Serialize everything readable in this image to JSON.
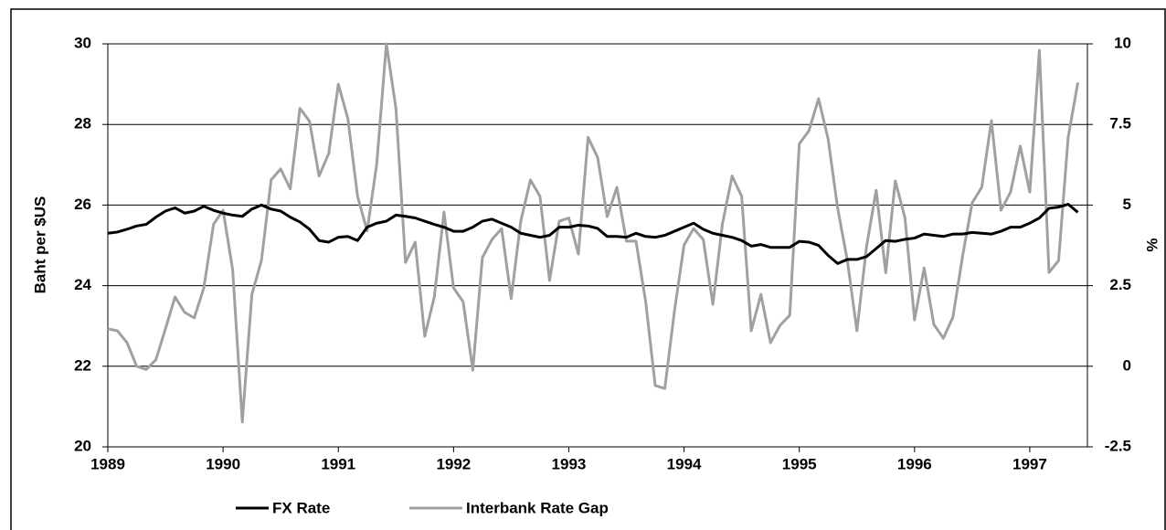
{
  "chart_data": {
    "type": "line",
    "y_label": "Baht per $US",
    "y2_label": "%",
    "x": [
      1989,
      1989.083,
      1989.167,
      1989.25,
      1989.333,
      1989.417,
      1989.5,
      1989.583,
      1989.667,
      1989.75,
      1989.833,
      1989.917,
      1990,
      1990.083,
      1990.167,
      1990.25,
      1990.333,
      1990.417,
      1990.5,
      1990.583,
      1990.667,
      1990.75,
      1990.833,
      1990.917,
      1991,
      1991.083,
      1991.167,
      1991.25,
      1991.333,
      1991.417,
      1991.5,
      1991.583,
      1991.667,
      1991.75,
      1991.833,
      1991.917,
      1992,
      1992.083,
      1992.167,
      1992.25,
      1992.333,
      1992.417,
      1992.5,
      1992.583,
      1992.667,
      1992.75,
      1992.833,
      1992.917,
      1993,
      1993.083,
      1993.167,
      1993.25,
      1993.333,
      1993.417,
      1993.5,
      1993.583,
      1993.667,
      1993.75,
      1993.833,
      1993.917,
      1994,
      1994.083,
      1994.167,
      1994.25,
      1994.333,
      1994.417,
      1994.5,
      1994.583,
      1994.667,
      1994.75,
      1994.833,
      1994.917,
      1995,
      1995.083,
      1995.167,
      1995.25,
      1995.333,
      1995.417,
      1995.5,
      1995.583,
      1995.667,
      1995.75,
      1995.833,
      1995.917,
      1996,
      1996.083,
      1996.167,
      1996.25,
      1996.333,
      1996.417,
      1996.5,
      1996.583,
      1996.667,
      1996.75,
      1996.833,
      1996.917,
      1997,
      1997.083,
      1997.167,
      1997.25,
      1997.333,
      1997.417
    ],
    "series": [
      {
        "name": "FX Rate",
        "color": "#000000",
        "axis": "y",
        "values": [
          25.3,
          25.33,
          25.4,
          25.48,
          25.52,
          25.7,
          25.85,
          25.93,
          25.8,
          25.85,
          25.97,
          25.87,
          25.8,
          25.75,
          25.72,
          25.9,
          26.0,
          25.9,
          25.85,
          25.7,
          25.58,
          25.4,
          25.12,
          25.08,
          25.2,
          25.22,
          25.12,
          25.45,
          25.55,
          25.6,
          25.75,
          25.72,
          25.68,
          25.6,
          25.52,
          25.45,
          25.35,
          25.35,
          25.45,
          25.6,
          25.65,
          25.55,
          25.45,
          25.3,
          25.25,
          25.2,
          25.25,
          25.45,
          25.45,
          25.5,
          25.48,
          25.42,
          25.22,
          25.22,
          25.2,
          25.3,
          25.22,
          25.2,
          25.25,
          25.35,
          25.45,
          25.55,
          25.4,
          25.3,
          25.25,
          25.2,
          25.12,
          24.98,
          25.02,
          24.95,
          24.95,
          24.95,
          25.1,
          25.08,
          25.0,
          24.75,
          24.55,
          24.65,
          24.65,
          24.72,
          24.92,
          25.12,
          25.1,
          25.15,
          25.18,
          25.28,
          25.25,
          25.22,
          25.28,
          25.28,
          25.32,
          25.3,
          25.28,
          25.35,
          25.45,
          25.45,
          25.55,
          25.68,
          25.92,
          25.95,
          26.02,
          25.82
        ]
      },
      {
        "name": "Interbank Rate Gap",
        "color": "#a0a0a0",
        "axis": "y2",
        "values": [
          1.16,
          1.1,
          0.73,
          0.0,
          -0.1,
          0.2,
          1.16,
          2.15,
          1.67,
          1.5,
          2.43,
          4.4,
          4.84,
          3.0,
          -1.73,
          2.23,
          3.28,
          5.78,
          6.12,
          5.5,
          8.0,
          7.6,
          5.9,
          6.6,
          8.75,
          7.68,
          5.27,
          4.2,
          6.26,
          10.0,
          8.0,
          3.22,
          3.85,
          0.93,
          2.15,
          4.78,
          2.43,
          2.0,
          -0.12,
          3.37,
          3.93,
          4.27,
          2.1,
          4.5,
          5.78,
          5.27,
          2.66,
          4.5,
          4.6,
          3.48,
          7.1,
          6.48,
          4.64,
          5.55,
          3.88,
          3.88,
          2.0,
          -0.6,
          -0.69,
          1.72,
          3.76,
          4.27,
          3.93,
          1.92,
          4.42,
          5.9,
          5.27,
          1.1,
          2.23,
          0.73,
          1.27,
          1.58,
          6.9,
          7.3,
          8.3,
          7.05,
          4.9,
          3.28,
          1.1,
          3.7,
          5.46,
          2.9,
          5.75,
          4.6,
          1.44,
          3.05,
          1.3,
          0.87,
          1.52,
          3.42,
          5.07,
          5.55,
          7.62,
          4.84,
          5.4,
          6.83,
          5.4,
          9.8,
          2.91,
          3.28,
          7.1,
          8.8
        ]
      }
    ],
    "xlim": [
      1989,
      1997.5
    ],
    "xticks": [
      1989,
      1990,
      1991,
      1992,
      1993,
      1994,
      1995,
      1996,
      1997
    ],
    "ylim": [
      20,
      30
    ],
    "yticks": [
      20,
      22,
      24,
      26,
      28,
      30
    ],
    "y2lim": [
      -2.5,
      10
    ],
    "y2ticks": [
      -2.5,
      0,
      2.5,
      5,
      7.5,
      10
    ],
    "grid": true,
    "legend": "bottom"
  }
}
